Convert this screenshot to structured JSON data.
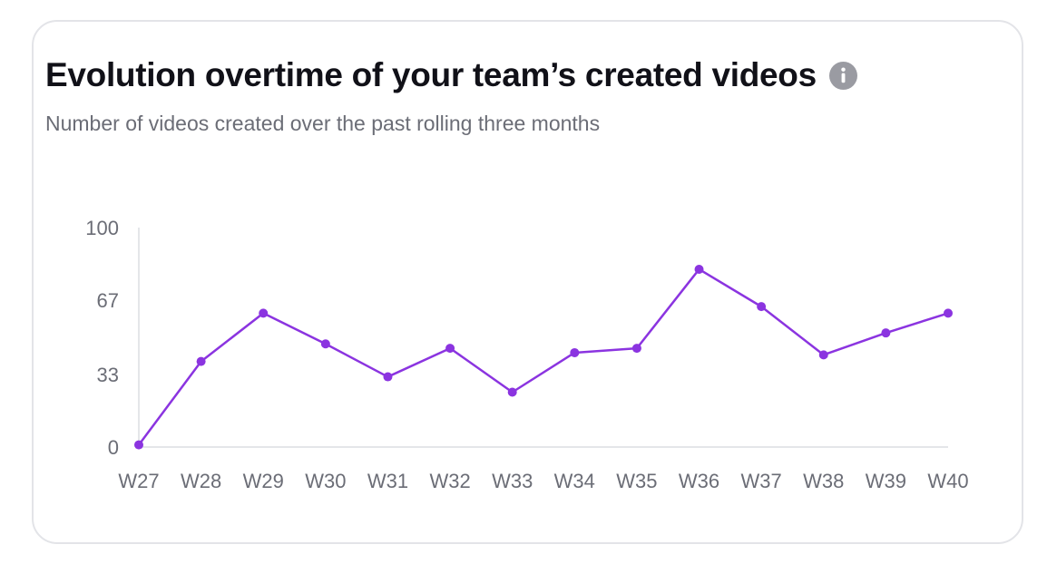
{
  "card": {
    "title": "Evolution overtime of your team’s created videos",
    "info_icon": "info-icon",
    "subtitle": "Number of videos created over the past rolling three months"
  },
  "colors": {
    "line": "#8b34e0",
    "axis": "#dcdde2",
    "text": "#6b6d76",
    "title": "#111118",
    "info_icon": "#9a9ba2"
  },
  "chart_data": {
    "type": "line",
    "title": "Evolution overtime of your team’s created videos",
    "subtitle": "Number of videos created over the past rolling three months",
    "xlabel": "",
    "ylabel": "",
    "categories": [
      "W27",
      "W28",
      "W29",
      "W30",
      "W31",
      "W32",
      "W33",
      "W34",
      "W35",
      "W36",
      "W37",
      "W38",
      "W39",
      "W40"
    ],
    "series": [
      {
        "values": [
          1,
          39,
          61,
          47,
          32,
          45,
          25,
          43,
          45,
          81,
          64,
          42,
          52,
          61
        ]
      }
    ],
    "y_ticks": [
      "0",
      "33",
      "67",
      "100"
    ],
    "ylim": [
      0,
      100
    ],
    "grid": false,
    "legend": "none"
  }
}
